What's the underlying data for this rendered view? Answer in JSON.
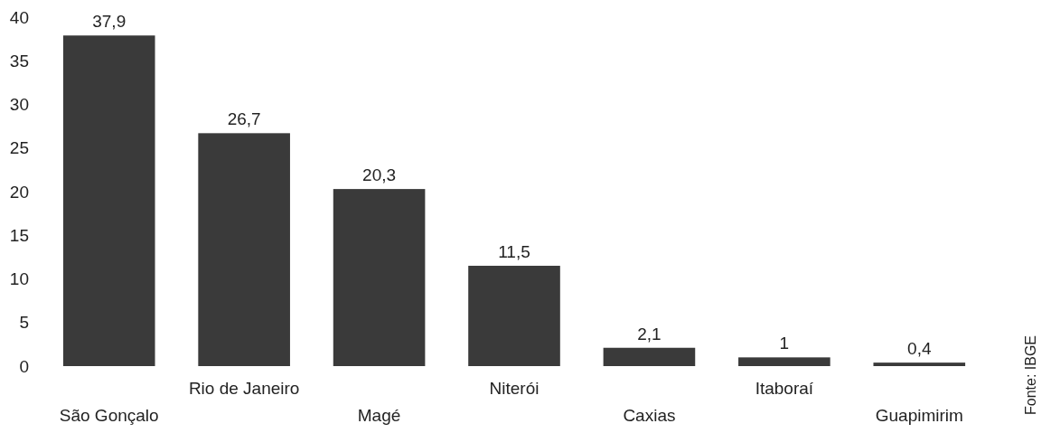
{
  "chart_data": {
    "type": "bar",
    "categories": [
      "São Gonçalo",
      "Rio de Janeiro",
      "Magé",
      "Niterói",
      "Caxias",
      "Itaboraí",
      "Guapimirim"
    ],
    "values": [
      37.9,
      26.7,
      20.3,
      11.5,
      2.1,
      1,
      0.4
    ],
    "value_labels": [
      "37,9",
      "26,7",
      "20,3",
      "11,5",
      "2,1",
      "1",
      "0,4"
    ],
    "color": "#3a3a3a",
    "ylim": [
      0,
      40
    ],
    "yticks": [
      0,
      5,
      10,
      15,
      20,
      25,
      30,
      35,
      40
    ],
    "grid": false,
    "annotations": [
      "Fonte: IBGE"
    ]
  }
}
